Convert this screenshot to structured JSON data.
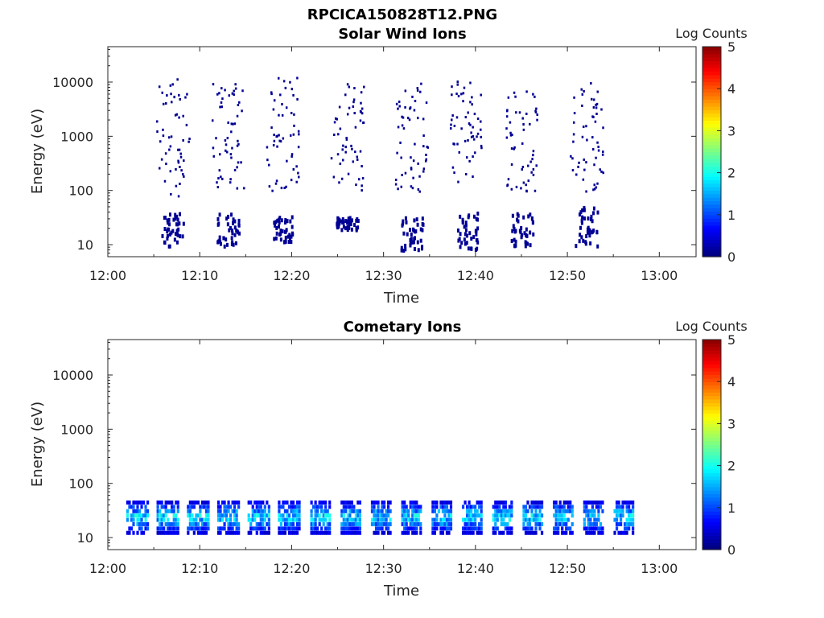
{
  "figure": {
    "title": "RPCICA150828T12.PNG"
  },
  "chart_data": [
    {
      "type": "heatmap",
      "title": "Solar Wind Ions",
      "xlabel": "Time",
      "ylabel": "Energy (eV)",
      "y_scale": "log",
      "xlim": [
        "12:00",
        "13:04"
      ],
      "ylim": [
        6,
        45000
      ],
      "x_ticks": [
        "12:00",
        "12:10",
        "12:20",
        "12:30",
        "12:40",
        "12:50",
        "13:00"
      ],
      "y_ticks": [
        10,
        100,
        1000,
        10000
      ],
      "y_tick_labels": [
        "10",
        "100",
        "1000",
        "10000"
      ],
      "colorbar": {
        "label": "Log Counts",
        "range": [
          0,
          5
        ],
        "ticks": [
          "0",
          "1",
          "2",
          "3",
          "4",
          "5"
        ]
      },
      "sweeps": [
        {
          "time": "12:07",
          "low_energy": [
            10,
            40
          ],
          "high_energy": [
            80,
            12000
          ]
        },
        {
          "time": "12:13",
          "low_energy": [
            10,
            40
          ],
          "high_energy": [
            100,
            10000
          ]
        },
        {
          "time": "12:19",
          "low_energy": [
            12,
            35
          ],
          "high_energy": [
            100,
            15000
          ]
        },
        {
          "time": "12:26",
          "low_energy": [
            20,
            35
          ],
          "high_energy": [
            100,
            10000
          ]
        },
        {
          "time": "12:33",
          "low_energy": [
            8,
            35
          ],
          "high_energy": [
            100,
            12000
          ]
        },
        {
          "time": "12:39",
          "low_energy": [
            8,
            45
          ],
          "high_energy": [
            150,
            12000
          ]
        },
        {
          "time": "12:45",
          "low_energy": [
            10,
            40
          ],
          "high_energy": [
            100,
            8000
          ]
        },
        {
          "time": "12:52",
          "low_energy": [
            10,
            60
          ],
          "high_energy": [
            100,
            12000
          ]
        }
      ],
      "log_counts_typical": 0.1,
      "colorscale": "jet"
    },
    {
      "type": "heatmap",
      "title": "Cometary Ions",
      "xlabel": "Time",
      "ylabel": "Energy (eV)",
      "y_scale": "log",
      "xlim": [
        "12:00",
        "13:04"
      ],
      "ylim": [
        6,
        45000
      ],
      "x_ticks": [
        "12:00",
        "12:10",
        "12:20",
        "12:30",
        "12:40",
        "12:50",
        "13:00"
      ],
      "y_ticks": [
        10,
        100,
        1000,
        10000
      ],
      "y_tick_labels": [
        "10",
        "100",
        "1000",
        "10000"
      ],
      "colorbar": {
        "label": "Log Counts",
        "range": [
          0,
          5
        ],
        "ticks": [
          "0",
          "1",
          "2",
          "3",
          "4",
          "5"
        ]
      },
      "band_energy_range": [
        12,
        45
      ],
      "band_time_range": [
        "12:02",
        "12:57"
      ],
      "peak_log_counts": 2.3,
      "colorscale": "jet"
    }
  ]
}
